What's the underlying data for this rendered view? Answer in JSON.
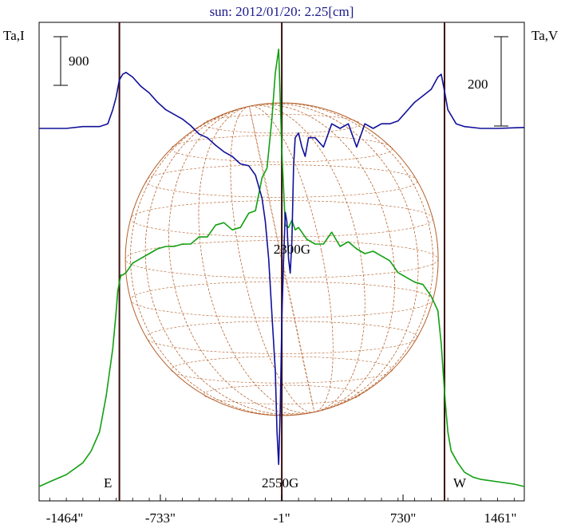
{
  "chart_data": {
    "type": "line",
    "title": "sun: 2012/01/20: 2.25[cm]",
    "ylabel_left": "Ta,I",
    "ylabel_right": "Ta,V",
    "x_ticks": [
      "-1464\"",
      "-733\"",
      "-1\"",
      "730\"",
      "1461\""
    ],
    "x_tick_values": [
      -1464,
      -733,
      -1,
      730,
      1461
    ],
    "xlim": [
      -1464,
      1461
    ],
    "scale_bar_I": "900",
    "scale_bar_V": "200",
    "limb_labels": {
      "east": "E",
      "west": "W"
    },
    "limb_positions": [
      -980,
      980
    ],
    "center_position": -1,
    "annotations": [
      {
        "text": "2300G",
        "x": 70
      },
      {
        "text": "2550G",
        "x": -1
      }
    ],
    "series": [
      {
        "name": "I",
        "color": "#11a011",
        "x": [
          -1464,
          -1400,
          -1300,
          -1200,
          -1150,
          -1100,
          -1060,
          -1020,
          -1000,
          -990,
          -980,
          -970,
          -960,
          -940,
          -900,
          -850,
          -800,
          -750,
          -700,
          -650,
          -600,
          -550,
          -500,
          -450,
          -400,
          -350,
          -300,
          -250,
          -200,
          -160,
          -120,
          -90,
          -60,
          -40,
          -20,
          0,
          20,
          40,
          60,
          80,
          100,
          150,
          200,
          250,
          300,
          350,
          400,
          450,
          500,
          550,
          600,
          650,
          700,
          750,
          800,
          850,
          900,
          940,
          960,
          980,
          990,
          1000,
          1020,
          1060,
          1100,
          1150,
          1200,
          1300,
          1400,
          1461
        ],
        "y": [
          0.0,
          0.02,
          0.05,
          0.1,
          0.15,
          0.23,
          0.38,
          0.58,
          0.73,
          0.82,
          0.86,
          0.89,
          0.89,
          0.9,
          0.94,
          0.96,
          0.98,
          1.0,
          1.01,
          1.01,
          1.02,
          1.02,
          1.05,
          1.05,
          1.1,
          1.11,
          1.08,
          1.09,
          1.15,
          1.16,
          1.3,
          1.34,
          1.55,
          1.74,
          1.84,
          1.4,
          1.1,
          1.09,
          1.12,
          1.08,
          1.09,
          1.04,
          1.02,
          1.02,
          1.07,
          1.01,
          1.03,
          1.0,
          0.98,
          0.99,
          0.97,
          0.95,
          0.9,
          0.88,
          0.86,
          0.85,
          0.8,
          0.74,
          0.6,
          0.4,
          0.31,
          0.23,
          0.15,
          0.1,
          0.06,
          0.04,
          0.03,
          0.02,
          0.01,
          0.0
        ]
      },
      {
        "name": "V",
        "color": "#10109a",
        "x": [
          -1464,
          -1300,
          -1200,
          -1100,
          -1050,
          -1020,
          -1000,
          -980,
          -960,
          -940,
          -900,
          -850,
          -800,
          -750,
          -700,
          -650,
          -600,
          -550,
          -500,
          -450,
          -400,
          -350,
          -300,
          -250,
          -200,
          -160,
          -120,
          -100,
          -80,
          -60,
          -40,
          -30,
          -20,
          -10,
          0,
          10,
          20,
          30,
          40,
          50,
          60,
          70,
          80,
          100,
          120,
          140,
          160,
          200,
          250,
          300,
          350,
          400,
          450,
          500,
          550,
          600,
          650,
          700,
          750,
          800,
          850,
          900,
          940,
          960,
          980,
          1000,
          1050,
          1100,
          1200,
          1300,
          1461
        ],
        "y": [
          0,
          0,
          0.02,
          0.02,
          0.05,
          0.2,
          0.33,
          0.52,
          0.58,
          0.6,
          0.55,
          0.45,
          0.38,
          0.28,
          0.2,
          0.15,
          0.1,
          0.03,
          -0.06,
          -0.1,
          -0.18,
          -0.25,
          -0.3,
          -0.38,
          -0.4,
          -0.5,
          -0.75,
          -1.0,
          -1.4,
          -2.0,
          -2.6,
          -3.25,
          -3.6,
          -3.0,
          -2.0,
          -1.4,
          -0.9,
          -1.0,
          -1.4,
          -1.55,
          -1.2,
          -0.4,
          -0.1,
          -0.05,
          -0.2,
          -0.3,
          -0.1,
          -0.1,
          -0.2,
          0.05,
          0.0,
          0.05,
          -0.2,
          0.05,
          0.0,
          0.05,
          0.05,
          0.08,
          0.18,
          0.28,
          0.35,
          0.42,
          0.55,
          0.58,
          0.4,
          0.2,
          0.05,
          0.02,
          0,
          0,
          0.01
        ]
      }
    ],
    "grid": false
  }
}
